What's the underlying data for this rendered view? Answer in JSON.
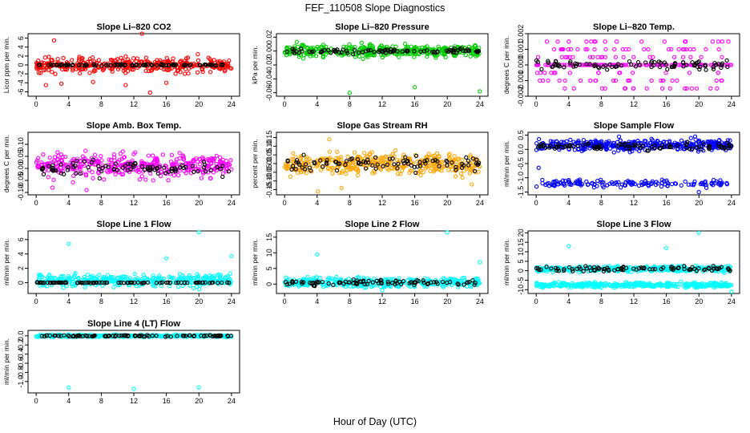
{
  "figure": {
    "title": "FEF_110508  Slope Diagnostics",
    "xlabel": "Hour of Day (UTC)"
  },
  "chart_data": [
    {
      "type": "scatter",
      "title": "Slope Li–820 CO2",
      "ylabel": "Licor ppm per min.",
      "xlim": [
        -1,
        25
      ],
      "ylim": [
        -7,
        7
      ],
      "yticks": [
        "-6",
        "-4",
        "-2",
        "0",
        "2",
        "4",
        "6"
      ],
      "ytick_values": [
        -6,
        -4,
        -2,
        0,
        2,
        4,
        6
      ],
      "xticks": [
        0,
        4,
        8,
        12,
        16,
        20,
        24
      ],
      "grid": false,
      "colors": {
        "primary": "#ff0000",
        "secondary": "#000000"
      },
      "series": [
        {
          "role": "all",
          "color": "#ff0000",
          "center": 0.0,
          "spread": 1.6,
          "density": "dense",
          "outliers": [
            [
              2.2,
              5.5
            ],
            [
              1.2,
              -4.5
            ],
            [
              3.1,
              -4.2
            ],
            [
              13.0,
              7.0
            ],
            [
              14.0,
              -6.2
            ],
            [
              16.0,
              -4.0
            ],
            [
              11.0,
              -4.5
            ],
            [
              7.0,
              -3.8
            ]
          ]
        },
        {
          "role": "fit",
          "color": "#000000",
          "center": 0.0,
          "spread": 0.15
        }
      ]
    },
    {
      "type": "scatter",
      "title": "Slope Li–820 Pressure",
      "ylabel": "kPa per min.",
      "xlim": [
        -1,
        25
      ],
      "ylim": [
        -0.065,
        0.025
      ],
      "yticks": [
        "-0.06",
        "-0.04",
        "-0.02",
        "0.00",
        "0.02"
      ],
      "ytick_values": [
        -0.06,
        -0.04,
        -0.02,
        0.0,
        0.02
      ],
      "xticks": [
        0,
        4,
        8,
        12,
        16,
        20,
        24
      ],
      "grid": false,
      "colors": {
        "primary": "#00cc00",
        "secondary": "#000000"
      },
      "series": [
        {
          "role": "all",
          "color": "#00cc00",
          "center": 0.0,
          "spread": 0.008,
          "density": "dense",
          "outliers": [
            [
              8.0,
              -0.06
            ],
            [
              16.0,
              -0.052
            ],
            [
              24.0,
              -0.058
            ],
            [
              1.5,
              0.013
            ]
          ]
        },
        {
          "role": "fit",
          "color": "#000000",
          "center": 0.0,
          "spread": 0.003
        }
      ]
    },
    {
      "type": "scatter",
      "title": "Slope Li–820 Temp.",
      "ylabel": "degrees C per min.",
      "xlim": [
        -1,
        25
      ],
      "ylim": [
        -0.002,
        0.002
      ],
      "yticks": [
        "-0.002",
        "-0.001",
        "0.000",
        "0.001",
        "0.002"
      ],
      "ytick_values": [
        -0.002,
        -0.001,
        0.0,
        0.001,
        0.002
      ],
      "xticks": [
        0,
        4,
        8,
        12,
        16,
        20,
        24
      ],
      "grid": false,
      "colors": {
        "primary": "#ff00ff",
        "secondary": "#000000"
      },
      "series": [
        {
          "role": "all",
          "color": "#ff00ff",
          "center": 0.0,
          "spread": 0.0007,
          "density": "quantized",
          "levels": [
            -0.001,
            -0.0005,
            0.0,
            0.0005,
            0.001,
            0.0015,
            -0.0015
          ],
          "outliers": []
        },
        {
          "role": "fit",
          "color": "#000000",
          "center": 0.0,
          "spread": 0.0003
        }
      ]
    },
    {
      "type": "scatter",
      "title": "Slope Amb. Box Temp.",
      "ylabel": "degrees C per min.",
      "xlim": [
        -1,
        25
      ],
      "ylim": [
        -0.11,
        0.15
      ],
      "yticks": [
        "-0.10",
        "-0.05",
        "0.00",
        "0.05",
        "0.10"
      ],
      "ytick_values": [
        -0.1,
        -0.05,
        0.0,
        0.05,
        0.1
      ],
      "xticks": [
        0,
        4,
        8,
        12,
        16,
        20,
        24
      ],
      "grid": false,
      "colors": {
        "primary": "#ff00ff",
        "secondary": "#000000"
      },
      "series": [
        {
          "role": "all",
          "color": "#ff00ff",
          "center": 0.01,
          "spread": 0.045,
          "density": "dense",
          "outliers": [
            [
              6.2,
              -0.09
            ],
            [
              2.0,
              -0.08
            ]
          ]
        },
        {
          "role": "fit",
          "color": "#000000",
          "center": 0.0,
          "spread": 0.03
        }
      ]
    },
    {
      "type": "scatter",
      "title": "Slope Gas Stream RH",
      "ylabel": "percent per min.",
      "xlim": [
        -1,
        25
      ],
      "ylim": [
        -0.18,
        0.18
      ],
      "yticks": [
        "-0.15",
        "-0.10",
        "-0.05",
        "0.00",
        "0.05",
        "0.10",
        "0.15"
      ],
      "ytick_values": [
        -0.15,
        -0.1,
        -0.05,
        0.0,
        0.05,
        0.1,
        0.15
      ],
      "xticks": [
        0,
        4,
        8,
        12,
        16,
        20,
        24
      ],
      "grid": false,
      "colors": {
        "primary": "#ffa500",
        "secondary": "#000000"
      },
      "series": [
        {
          "role": "all",
          "color": "#ffa500",
          "center": 0.0,
          "spread": 0.06,
          "density": "dense",
          "outliers": [
            [
              4.1,
              -0.16
            ],
            [
              5.5,
              0.14
            ],
            [
              7.0,
              -0.14
            ],
            [
              23.0,
              -0.12
            ]
          ]
        },
        {
          "role": "fit",
          "color": "#000000",
          "center": 0.0,
          "spread": 0.04
        }
      ]
    },
    {
      "type": "scatter",
      "title": "Slope Sample Flow",
      "ylabel": "ml/min per min.",
      "xlim": [
        -1,
        25
      ],
      "ylim": [
        -1.6,
        0.6
      ],
      "yticks": [
        "-1.5",
        "-1.0",
        "-0.5",
        "0.0",
        "0.5"
      ],
      "ytick_values": [
        -1.5,
        -1.0,
        -0.5,
        0.0,
        0.5
      ],
      "xticks": [
        0,
        4,
        8,
        12,
        16,
        20,
        24
      ],
      "grid": false,
      "colors": {
        "primary": "#0000ff",
        "secondary": "#000000"
      },
      "series": [
        {
          "role": "upper",
          "color": "#0000ff",
          "center": 0.15,
          "spread": 0.2,
          "density": "dense",
          "outliers": []
        },
        {
          "role": "lower",
          "color": "#0000ff",
          "center": -1.2,
          "spread": 0.12,
          "density": "sparse",
          "outliers": [
            [
              0.3,
              -0.65
            ],
            [
              20.0,
              -1.5
            ]
          ]
        },
        {
          "role": "fit",
          "color": "#000000",
          "center": 0.1,
          "spread": 0.12
        }
      ]
    },
    {
      "type": "scatter",
      "title": "Slope Line 1 Flow",
      "ylabel": "ml/min per min.",
      "xlim": [
        -1,
        25
      ],
      "ylim": [
        -1.5,
        7.2
      ],
      "yticks": [
        "0",
        "2",
        "4",
        "6"
      ],
      "ytick_values": [
        0,
        2,
        4,
        6
      ],
      "xticks": [
        0,
        4,
        8,
        12,
        16,
        20,
        24
      ],
      "grid": false,
      "colors": {
        "primary": "#00ffff",
        "secondary": "#000000"
      },
      "series": [
        {
          "role": "all",
          "color": "#00ffff",
          "center": 0.3,
          "spread": 0.8,
          "density": "dense",
          "outliers": [
            [
              4.0,
              5.4
            ],
            [
              20.0,
              7.0
            ],
            [
              16.0,
              3.4
            ],
            [
              24.0,
              3.7
            ]
          ]
        },
        {
          "role": "fit",
          "color": "#000000",
          "center": 0.0,
          "spread": 0.05
        }
      ]
    },
    {
      "type": "scatter",
      "title": "Slope Line 2 Flow",
      "ylabel": "ml/min per min.",
      "xlim": [
        -1,
        25
      ],
      "ylim": [
        -3,
        17
      ],
      "yticks": [
        "0",
        "5",
        "10",
        "15"
      ],
      "ytick_values": [
        0,
        5,
        10,
        15
      ],
      "xticks": [
        0,
        4,
        8,
        12,
        16,
        20,
        24
      ],
      "grid": false,
      "colors": {
        "primary": "#00ffff",
        "secondary": "#000000"
      },
      "series": [
        {
          "role": "all",
          "color": "#00ffff",
          "center": 0.5,
          "spread": 1.4,
          "density": "dense",
          "outliers": [
            [
              4.0,
              9.5
            ],
            [
              20.0,
              16.5
            ],
            [
              24.0,
              7.0
            ],
            [
              12.0,
              -2.0
            ]
          ]
        },
        {
          "role": "fit",
          "color": "#000000",
          "center": 0.4,
          "spread": 0.8
        }
      ]
    },
    {
      "type": "scatter",
      "title": "Slope Line 3 Flow",
      "ylabel": "ml/min per min.",
      "xlim": [
        -1,
        25
      ],
      "ylim": [
        -12,
        21
      ],
      "yticks": [
        "-10",
        "-5",
        "0",
        "5",
        "10",
        "15",
        "20"
      ],
      "ytick_values": [
        -10,
        -5,
        0,
        5,
        10,
        15,
        20
      ],
      "xticks": [
        0,
        4,
        8,
        12,
        16,
        20,
        24
      ],
      "grid": false,
      "colors": {
        "primary": "#00ffff",
        "secondary": "#000000"
      },
      "series": [
        {
          "role": "upper",
          "color": "#00ffff",
          "center": 1.0,
          "spread": 1.4,
          "density": "dense",
          "outliers": [
            [
              4.0,
              13.0
            ],
            [
              20.0,
              20.0
            ],
            [
              16.0,
              12.0
            ]
          ]
        },
        {
          "role": "lower",
          "color": "#00ffff",
          "center": -7.5,
          "spread": 1.2,
          "density": "dense",
          "outliers": [
            [
              24.0,
              -11.0
            ]
          ]
        },
        {
          "role": "fit",
          "color": "#000000",
          "center": 1.0,
          "spread": 1.3
        }
      ]
    },
    {
      "type": "scatter",
      "title": "Slope Line 4 (LT) Flow",
      "ylabel": "ml/min per min.",
      "xlim": [
        -1,
        25
      ],
      "ylim": [
        -1.25,
        0.12
      ],
      "yticks": [
        "-1.0",
        "-0.8",
        "-0.6",
        "-0.4",
        "-0.2",
        "0.0"
      ],
      "ytick_values": [
        -1.0,
        -0.8,
        -0.6,
        -0.4,
        -0.2,
        0.0
      ],
      "xticks": [
        0,
        4,
        8,
        12,
        16,
        20,
        24
      ],
      "grid": false,
      "colors": {
        "primary": "#00ffff",
        "secondary": "#000000"
      },
      "series": [
        {
          "role": "all",
          "color": "#00ffff",
          "center": 0.0,
          "spread": 0.025,
          "density": "dense",
          "outliers": [
            [
              4.0,
              -1.13
            ],
            [
              12.0,
              -1.16
            ],
            [
              20.0,
              -1.13
            ]
          ]
        },
        {
          "role": "fit",
          "color": "#000000",
          "center": 0.0,
          "spread": 0.015
        }
      ]
    }
  ]
}
